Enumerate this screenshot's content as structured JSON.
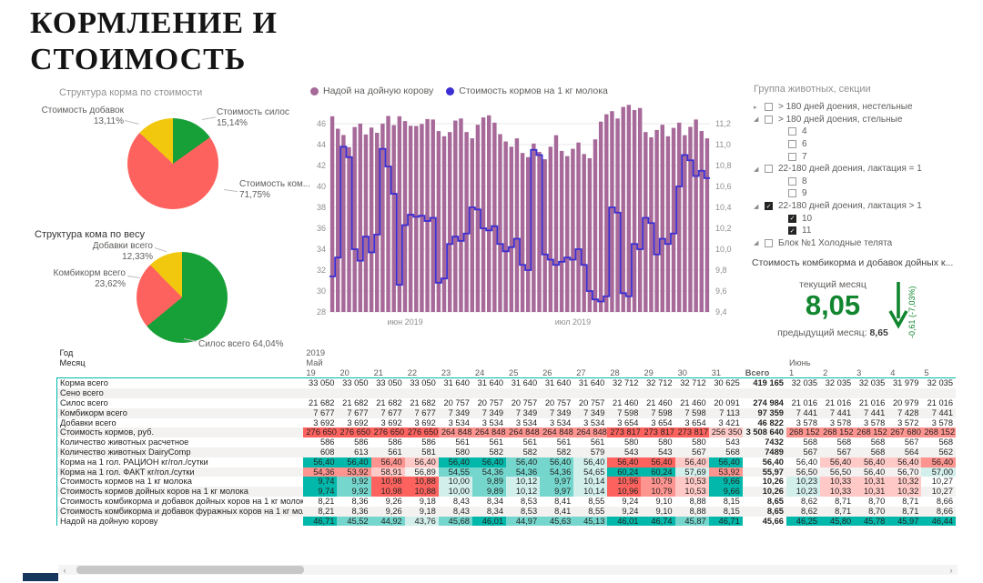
{
  "page": {
    "title_line1": "КОРМЛЕНИЕ И",
    "title_line2": "СТОИМОСТЬ"
  },
  "colors": {
    "green": "#18a038",
    "red": "#fd625e",
    "yellow": "#f2c80f",
    "purple_bar": "#a66999",
    "blue_line": "#3b2fd4",
    "kpi_green": "#11862f",
    "teal": "#01b8aa",
    "navy": "#17365d",
    "cell_palette": {
      "t3": "#01b8aa",
      "t2": "#74d6cd",
      "t1": "#d3efec",
      "r3": "#fd625e",
      "r2": "#fe948f",
      "r1": "#fec9c6",
      "w": ""
    }
  },
  "pies": [
    {
      "title": "Структура корма по стоимости",
      "slices": [
        {
          "name": "Стоимость силос",
          "pct": 15.14,
          "pct_label": "15,14%",
          "color": "#18a038"
        },
        {
          "name": "Стоимость ком...",
          "pct": 71.75,
          "pct_label": "71,75%",
          "color": "#fd625e"
        },
        {
          "name": "Стоимость добавок",
          "pct": 13.11,
          "pct_label": "13,11%",
          "color": "#f2c80f"
        }
      ]
    },
    {
      "title": "Структура кома по весу",
      "slices": [
        {
          "name": "Силос всего",
          "pct": 64.04,
          "pct_label": "64,04%",
          "color": "#18a038"
        },
        {
          "name": "Комбикорм всего",
          "pct": 23.62,
          "pct_label": "23,62%",
          "color": "#fd625e"
        },
        {
          "name": "Добавки всего",
          "pct": 12.33,
          "pct_label": "12,33%",
          "color": "#f2c80f"
        }
      ]
    }
  ],
  "chart_data": {
    "type": "bar+line",
    "title": "",
    "legend": [
      {
        "name": "Надой на дойную корову",
        "color": "#a66999",
        "type": "bar",
        "axis": "left"
      },
      {
        "name": "Стоимость кормов на 1 кг молока",
        "color": "#3b2fd4",
        "type": "line",
        "axis": "right"
      }
    ],
    "x_description": "дни с 19 мая 2019 по 25 июля 2019",
    "x_ticks": [
      {
        "label": "июн 2019",
        "index": 13
      },
      {
        "label": "июл 2019",
        "index": 43
      }
    ],
    "left_axis": {
      "min": 28,
      "max": 48,
      "tick_labels": [
        "46",
        "44",
        "42",
        "40",
        "38",
        "36",
        "34",
        "32",
        "30",
        "28"
      ]
    },
    "right_axis": {
      "min": 9.4,
      "max": 11.4,
      "tick_labels": [
        "11,2",
        "11,0",
        "10,8",
        "10,6",
        "10,4",
        "10,2",
        "10,0",
        "9,8",
        "9,6",
        "9,4"
      ]
    },
    "series": [
      {
        "name": "Надой на дойную корову",
        "type": "bar",
        "values": [
          46.71,
          45.52,
          44.92,
          43.76,
          45.68,
          46.01,
          44.97,
          45.63,
          45.13,
          46.01,
          46.74,
          45.87,
          46.71,
          46.25,
          45.8,
          45.78,
          45.97,
          46.44,
          46.4,
          45.3,
          44.8,
          45.2,
          46.3,
          46.5,
          45.2,
          44.6,
          45.9,
          46.6,
          46.8,
          46.1,
          45.0,
          44.3,
          43.8,
          44.6,
          43.2,
          42.8,
          44.1,
          43.3,
          42.6,
          43.8,
          44.9,
          43.4,
          42.9,
          43.6,
          44.2,
          43.1,
          42.7,
          44.5,
          46.2,
          46.9,
          47.2,
          46.5,
          47.6,
          47.8,
          47.3,
          47.5,
          45.2,
          44.7,
          45.4,
          45.9,
          44.8,
          45.6,
          46.1,
          44.9,
          45.7,
          46.4,
          45.3,
          44.6
        ]
      },
      {
        "name": "Стоимость кормов на 1 кг молока",
        "type": "line",
        "values": [
          9.74,
          9.92,
          10.98,
          10.88,
          10.0,
          9.89,
          10.12,
          9.97,
          10.14,
          10.96,
          10.79,
          10.53,
          9.66,
          10.23,
          10.33,
          10.31,
          10.32,
          10.27,
          10.3,
          9.68,
          9.72,
          10.05,
          10.12,
          10.08,
          10.15,
          10.4,
          10.38,
          10.2,
          10.18,
          10.22,
          10.05,
          9.98,
          10.02,
          10.1,
          9.85,
          9.8,
          10.95,
          10.9,
          9.95,
          9.9,
          9.85,
          9.88,
          9.92,
          9.9,
          10.0,
          9.85,
          9.6,
          9.52,
          9.5,
          9.55,
          10.4,
          10.35,
          9.58,
          9.55,
          10.05,
          10.0,
          10.3,
          10.25,
          9.95,
          10.1,
          10.05,
          10.15,
          10.6,
          10.9,
          10.85,
          10.7,
          10.75,
          10.68
        ]
      }
    ]
  },
  "slicer": {
    "title": "Группа животных, секции",
    "items": [
      {
        "level": 0,
        "caret": "collapsed",
        "checked": false,
        "label": "> 180 дней доения, нестельные"
      },
      {
        "level": 0,
        "caret": "expanded",
        "checked": false,
        "label": "> 180 дней доения, стельные"
      },
      {
        "level": 1,
        "caret": "none",
        "checked": false,
        "label": "4"
      },
      {
        "level": 1,
        "caret": "none",
        "checked": false,
        "label": "6"
      },
      {
        "level": 1,
        "caret": "none",
        "checked": false,
        "label": "7"
      },
      {
        "level": 0,
        "caret": "expanded",
        "checked": false,
        "label": "22-180 дней доения, лактация = 1"
      },
      {
        "level": 1,
        "caret": "none",
        "checked": false,
        "label": "8"
      },
      {
        "level": 1,
        "caret": "none",
        "checked": false,
        "label": "9"
      },
      {
        "level": 0,
        "caret": "expanded",
        "checked": true,
        "label": "22-180 дней доения, лактация > 1"
      },
      {
        "level": 1,
        "caret": "none",
        "checked": true,
        "label": "10"
      },
      {
        "level": 1,
        "caret": "none",
        "checked": true,
        "label": "11"
      },
      {
        "level": 0,
        "caret": "expanded",
        "checked": false,
        "label": "Блок №1 Холодные телята"
      }
    ]
  },
  "kpi": {
    "title": "Стоимость комбикорма и добавок дойных к...",
    "current_label": "текущий месяц",
    "current_value": "8,05",
    "previous_label": "предыдущий месяц:",
    "previous_value": "8,65",
    "delta_label": "-0,61 (-7,03%)"
  },
  "table": {
    "year_label": "Год",
    "year_value": "2019",
    "month_label": "Месяц",
    "month_may": "Май",
    "month_june": "Июнь",
    "day_cols": [
      "19",
      "20",
      "21",
      "22",
      "23",
      "24",
      "25",
      "26",
      "27",
      "28",
      "29",
      "30",
      "31"
    ],
    "total_col": "Всего",
    "june_cols": [
      "1",
      "2",
      "3",
      "4",
      "5"
    ],
    "rows": [
      {
        "label": "Корма всего",
        "values": [
          "33 050",
          "33 050",
          "33 050",
          "33 050",
          "31 640",
          "31 640",
          "31 640",
          "31 640",
          "31 640",
          "32 712",
          "32 712",
          "32 712",
          "30 625",
          "419 165",
          "32 035",
          "32 035",
          "32 035",
          "31 979",
          "32 035"
        ],
        "colors": [
          "w",
          "w",
          "w",
          "w",
          "w",
          "w",
          "w",
          "w",
          "w",
          "w",
          "w",
          "w",
          "w",
          "w",
          "w",
          "w",
          "w",
          "w",
          "w"
        ]
      },
      {
        "label": "Сено всего",
        "values": [
          "",
          "",
          "",
          "",
          "",
          "",
          "",
          "",
          "",
          "",
          "",
          "",
          "",
          "",
          "",
          "",
          "",
          "",
          ""
        ],
        "colors": [
          "w",
          "w",
          "w",
          "w",
          "w",
          "w",
          "w",
          "w",
          "w",
          "w",
          "w",
          "w",
          "w",
          "w",
          "w",
          "w",
          "w",
          "w",
          "w"
        ]
      },
      {
        "label": "Силос всего",
        "values": [
          "21 682",
          "21 682",
          "21 682",
          "21 682",
          "20 757",
          "20 757",
          "20 757",
          "20 757",
          "20 757",
          "21 460",
          "21 460",
          "21 460",
          "20 091",
          "274 984",
          "21 016",
          "21 016",
          "21 016",
          "20 979",
          "21 016"
        ],
        "colors": [
          "w",
          "w",
          "w",
          "w",
          "w",
          "w",
          "w",
          "w",
          "w",
          "w",
          "w",
          "w",
          "w",
          "w",
          "w",
          "w",
          "w",
          "w",
          "w"
        ]
      },
      {
        "label": "Комбикорм всего",
        "values": [
          "7 677",
          "7 677",
          "7 677",
          "7 677",
          "7 349",
          "7 349",
          "7 349",
          "7 349",
          "7 349",
          "7 598",
          "7 598",
          "7 598",
          "7 113",
          "97 359",
          "7 441",
          "7 441",
          "7 441",
          "7 428",
          "7 441"
        ],
        "colors": [
          "w",
          "w",
          "w",
          "w",
          "w",
          "w",
          "w",
          "w",
          "w",
          "w",
          "w",
          "w",
          "w",
          "w",
          "w",
          "w",
          "w",
          "w",
          "w"
        ]
      },
      {
        "label": "Добавки всего",
        "values": [
          "3 692",
          "3 692",
          "3 692",
          "3 692",
          "3 534",
          "3 534",
          "3 534",
          "3 534",
          "3 534",
          "3 654",
          "3 654",
          "3 654",
          "3 421",
          "46 822",
          "3 578",
          "3 578",
          "3 578",
          "3 572",
          "3 578"
        ],
        "colors": [
          "w",
          "w",
          "w",
          "w",
          "w",
          "w",
          "w",
          "w",
          "w",
          "w",
          "w",
          "w",
          "w",
          "w",
          "w",
          "w",
          "w",
          "w",
          "w"
        ]
      },
      {
        "label": "Стоимость кормов, руб.",
        "values": [
          "276 650",
          "276 650",
          "276 650",
          "276 650",
          "264 848",
          "264 848",
          "264 848",
          "264 848",
          "264 848",
          "273 817",
          "273 817",
          "273 817",
          "256 350",
          "3 508 640",
          "268 152",
          "268 152",
          "268 152",
          "267 680",
          "268 152"
        ],
        "colors": [
          "r3",
          "r3",
          "r3",
          "r3",
          "r2",
          "r2",
          "r2",
          "r2",
          "r2",
          "r3",
          "r3",
          "r3",
          "r1",
          "w",
          "r2",
          "r2",
          "r2",
          "r2",
          "r2"
        ]
      },
      {
        "label": "Количество животных расчетное",
        "values": [
          "586",
          "586",
          "586",
          "586",
          "561",
          "561",
          "561",
          "561",
          "561",
          "580",
          "580",
          "580",
          "543",
          "7432",
          "568",
          "568",
          "568",
          "567",
          "568"
        ],
        "colors": [
          "w",
          "w",
          "w",
          "w",
          "w",
          "w",
          "w",
          "w",
          "w",
          "w",
          "w",
          "w",
          "w",
          "w",
          "w",
          "w",
          "w",
          "w",
          "w"
        ]
      },
      {
        "label": "Количество животных DairyComp",
        "values": [
          "608",
          "613",
          "561",
          "581",
          "580",
          "582",
          "582",
          "582",
          "579",
          "543",
          "543",
          "567",
          "568",
          "7489",
          "567",
          "567",
          "568",
          "564",
          "562"
        ],
        "colors": [
          "w",
          "w",
          "w",
          "w",
          "w",
          "w",
          "w",
          "w",
          "w",
          "w",
          "w",
          "w",
          "w",
          "w",
          "w",
          "w",
          "w",
          "w",
          "w"
        ]
      },
      {
        "label": "Корма на 1 гол. РАЦИОН кг/гол./сутки",
        "values": [
          "56,40",
          "56,40",
          "56,40",
          "56,40",
          "56,40",
          "56,40",
          "56,40",
          "56,40",
          "56,40",
          "56,40",
          "56,40",
          "56,40",
          "56,40",
          "56,40",
          "56,40",
          "56,40",
          "56,40",
          "56,40",
          "56,40"
        ],
        "colors": [
          "t3",
          "t3",
          "r2",
          "r1",
          "t3",
          "t3",
          "t2",
          "t2",
          "t1",
          "r3",
          "r3",
          "r1",
          "t3",
          "w",
          "w",
          "r1",
          "r1",
          "r1",
          "r2"
        ]
      },
      {
        "label": "Корма на 1 гол. ФАКТ кг/гол./сутки",
        "values": [
          "54,36",
          "53,92",
          "58,91",
          "56,89",
          "54,55",
          "54,36",
          "54,36",
          "54,36",
          "54,65",
          "60,24",
          "60,24",
          "57,69",
          "53,92",
          "55,97",
          "56,50",
          "56,50",
          "56,40",
          "56,70",
          "57,00"
        ],
        "colors": [
          "r2",
          "r2",
          "r1",
          "w",
          "t2",
          "t2",
          "t2",
          "t2",
          "t1",
          "t3",
          "t3",
          "t1",
          "r2",
          "w",
          "w",
          "w",
          "w",
          "w",
          "t1"
        ]
      },
      {
        "label": "Стоимость кормов на 1 кг молока",
        "values": [
          "9,74",
          "9,92",
          "10,98",
          "10,88",
          "10,00",
          "9,89",
          "10,12",
          "9,97",
          "10,14",
          "10,96",
          "10,79",
          "10,53",
          "9,66",
          "10,26",
          "10,23",
          "10,33",
          "10,31",
          "10,32",
          "10,27"
        ],
        "colors": [
          "t3",
          "t2",
          "r3",
          "r3",
          "t1",
          "t2",
          "t1",
          "t2",
          "t1",
          "r3",
          "r2",
          "r1",
          "t3",
          "w",
          "t1",
          "r1",
          "r1",
          "r1",
          "w"
        ]
      },
      {
        "label": "Стоимость кормов дойных коров на 1 кг молока",
        "values": [
          "9,74",
          "9,92",
          "10,98",
          "10,88",
          "10,00",
          "9,89",
          "10,12",
          "9,97",
          "10,14",
          "10,96",
          "10,79",
          "10,53",
          "9,66",
          "10,26",
          "10,23",
          "10,33",
          "10,31",
          "10,32",
          "10,27"
        ],
        "colors": [
          "t3",
          "t2",
          "r3",
          "r3",
          "t1",
          "t2",
          "t1",
          "t2",
          "t1",
          "r3",
          "r2",
          "r1",
          "t3",
          "w",
          "t1",
          "r1",
          "r1",
          "r1",
          "w"
        ]
      },
      {
        "label": "Стоимость комбикорма и добавок дойных коров на 1 кг молока",
        "values": [
          "8,21",
          "8,36",
          "9,26",
          "9,18",
          "8,43",
          "8,34",
          "8,53",
          "8,41",
          "8,55",
          "9,24",
          "9,10",
          "8,88",
          "8,15",
          "8,65",
          "8,62",
          "8,71",
          "8,70",
          "8,71",
          "8,66"
        ],
        "colors": [
          "w",
          "w",
          "w",
          "w",
          "w",
          "w",
          "w",
          "w",
          "w",
          "w",
          "w",
          "w",
          "w",
          "w",
          "w",
          "w",
          "w",
          "w",
          "w"
        ]
      },
      {
        "label": "Стоимость комбикорма и добавок фуражных коров на 1 кг молока",
        "values": [
          "8,21",
          "8,36",
          "9,26",
          "9,18",
          "8,43",
          "8,34",
          "8,53",
          "8,41",
          "8,55",
          "9,24",
          "9,10",
          "8,88",
          "8,15",
          "8,65",
          "8,62",
          "8,71",
          "8,70",
          "8,71",
          "8,66"
        ],
        "colors": [
          "w",
          "w",
          "w",
          "w",
          "w",
          "w",
          "w",
          "w",
          "w",
          "w",
          "w",
          "w",
          "w",
          "w",
          "w",
          "w",
          "w",
          "w",
          "w"
        ]
      },
      {
        "label": "Надой на дойную корову",
        "values": [
          "46,71",
          "45,52",
          "44,92",
          "43,76",
          "45,68",
          "46,01",
          "44,97",
          "45,63",
          "45,13",
          "46,01",
          "46,74",
          "45,87",
          "46,71",
          "45,66",
          "46,25",
          "45,80",
          "45,78",
          "45,97",
          "46,44"
        ],
        "colors": [
          "t3",
          "t2",
          "t2",
          "t1",
          "t2",
          "t3",
          "t2",
          "t2",
          "t2",
          "t3",
          "t3",
          "t2",
          "t3",
          "w",
          "t3",
          "t3",
          "t3",
          "t3",
          "t3"
        ]
      }
    ]
  },
  "scrollbar": {
    "left_arrow": "‹",
    "right_arrow": "›"
  }
}
